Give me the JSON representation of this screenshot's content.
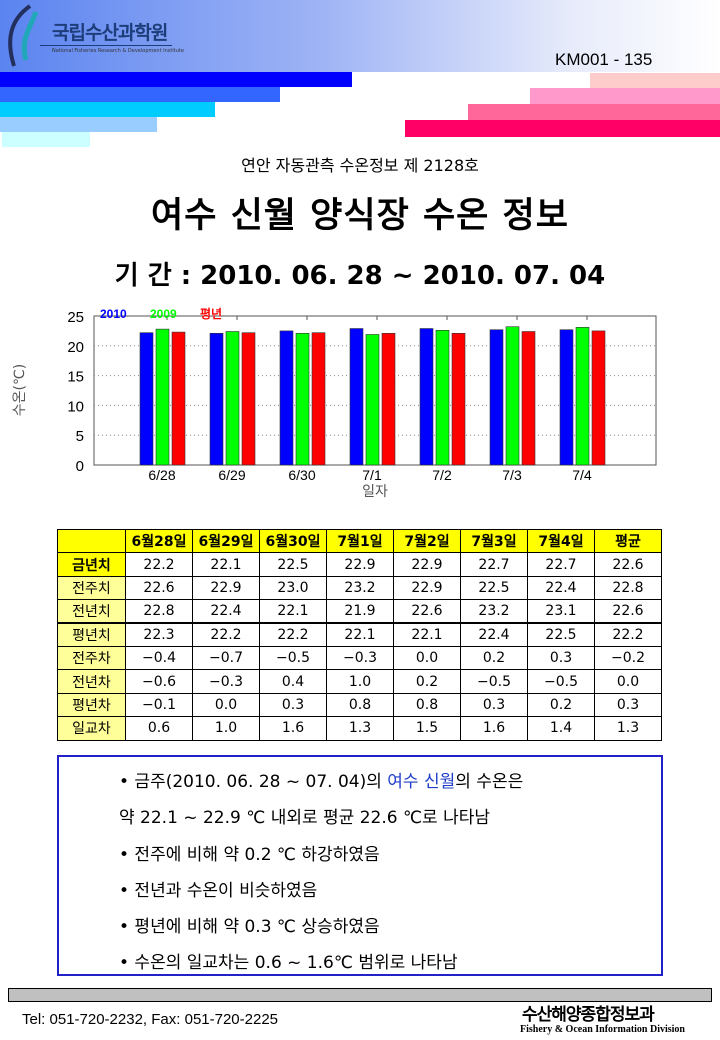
{
  "header": {
    "logo_text": "국립수산과학원",
    "logo_sub": "National Fisheries Research & Development Institute",
    "doc_number": "KM001 - 135"
  },
  "colors": {
    "series_2010": "#0000ff",
    "series_2009": "#00ff00",
    "series_normal": "#ff0000",
    "table_header": "#ffff00",
    "summary_border": "#2121c8"
  },
  "subtitle": "연안 자동관측 수온정보 제 2128호",
  "title": "여수 신월 양식장 수온 정보",
  "period": "기 간 : 2010. 06. 28 ~ 2010. 07. 04",
  "chart_data": {
    "type": "bar",
    "categories": [
      "6/28",
      "6/29",
      "6/30",
      "7/1",
      "7/2",
      "7/3",
      "7/4"
    ],
    "series": [
      {
        "name": "2010",
        "values": [
          22.2,
          22.1,
          22.5,
          22.9,
          22.9,
          22.7,
          22.7
        ]
      },
      {
        "name": "2009",
        "values": [
          22.8,
          22.4,
          22.1,
          21.9,
          22.6,
          23.2,
          23.1
        ]
      },
      {
        "name": "평년",
        "values": [
          22.3,
          22.2,
          22.2,
          22.1,
          22.1,
          22.4,
          22.5
        ]
      }
    ],
    "xlabel": "일자",
    "ylabel": "수온(℃)",
    "ylim": [
      0,
      25
    ],
    "yticks": [
      0,
      5,
      10,
      15,
      20,
      25
    ],
    "grid": true,
    "legend": "top-left"
  },
  "table": {
    "headers": [
      "",
      "6월28일",
      "6월29일",
      "6월30일",
      "7월1일",
      "7월2일",
      "7월3일",
      "7월4일",
      "평균"
    ],
    "rows": [
      {
        "label": "금년치",
        "values": [
          "22.2",
          "22.1",
          "22.5",
          "22.9",
          "22.9",
          "22.7",
          "22.7",
          "22.6"
        ]
      },
      {
        "label": "전주치",
        "values": [
          "22.6",
          "22.9",
          "23.0",
          "23.2",
          "22.9",
          "22.5",
          "22.4",
          "22.8"
        ]
      },
      {
        "label": "전년치",
        "values": [
          "22.8",
          "22.4",
          "22.1",
          "21.9",
          "22.6",
          "23.2",
          "23.1",
          "22.6"
        ]
      },
      {
        "label": "평년치",
        "values": [
          "22.3",
          "22.2",
          "22.2",
          "22.1",
          "22.1",
          "22.4",
          "22.5",
          "22.2"
        ]
      },
      {
        "label": "전주차",
        "values": [
          "−0.4",
          "−0.7",
          "−0.5",
          "−0.3",
          "0.0",
          "0.2",
          "0.3",
          "−0.2"
        ]
      },
      {
        "label": "전년차",
        "values": [
          "−0.6",
          "−0.3",
          "0.4",
          "1.0",
          "0.2",
          "−0.5",
          "−0.5",
          "0.0"
        ]
      },
      {
        "label": "평년차",
        "values": [
          "−0.1",
          "0.0",
          "0.3",
          "0.8",
          "0.8",
          "0.3",
          "0.2",
          "0.3"
        ]
      },
      {
        "label": "일교차",
        "values": [
          "0.6",
          "1.0",
          "1.6",
          "1.3",
          "1.5",
          "1.6",
          "1.4",
          "1.3"
        ]
      }
    ]
  },
  "summary": {
    "l1a": "• 금주(2010. 06. 28 ~ 07. 04)의 ",
    "l1b": "여수 신월",
    "l1c": "의 수온은",
    "l2": "약 22.1 ~ 22.9 ℃ 내외로 평균 22.6 ℃로 나타남",
    "l3": "• 전주에 비해 약 0.2 ℃ 하강하였음",
    "l4": "• 전년과 수온이 비슷하였음",
    "l5": "• 평년에 비해 약 0.3 ℃ 상승하였음",
    "l6": "• 수온의 일교차는 0.6 ~ 1.6℃ 범위로 나타남"
  },
  "footer": {
    "contact": "Tel: 051-720-2232,  Fax: 051-720-2225",
    "org": "수산해양종합정보과",
    "org_en": "Fishery & Ocean Information Division"
  }
}
